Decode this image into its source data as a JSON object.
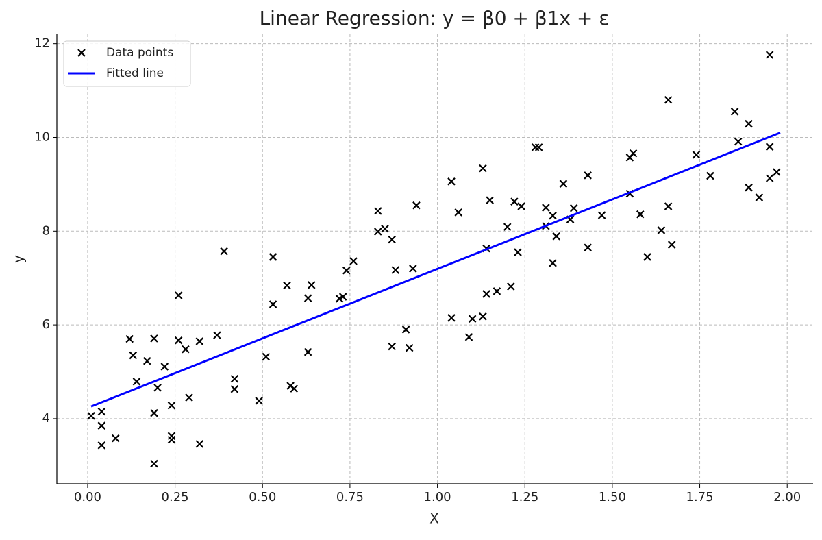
{
  "chart_data": {
    "type": "scatter",
    "title": "Linear Regression: y = β0 + β1x + ε",
    "x_label": "X",
    "y_label": "y",
    "xlim": [
      -0.088,
      2.074
    ],
    "ylim": [
      2.61,
      12.2
    ],
    "xticks": [
      {
        "value": 0,
        "label": "0.00"
      },
      {
        "value": 0.25,
        "label": "0.25"
      },
      {
        "value": 0.5,
        "label": "0.50"
      },
      {
        "value": 0.75,
        "label": "0.75"
      },
      {
        "value": 1,
        "label": "1.00"
      },
      {
        "value": 1.25,
        "label": "1.25"
      },
      {
        "value": 1.5,
        "label": "1.50"
      },
      {
        "value": 1.75,
        "label": "1.75"
      },
      {
        "value": 2,
        "label": "2.00"
      }
    ],
    "yticks": [
      4,
      6,
      8,
      10,
      12
    ],
    "grid": true,
    "legend": "upper left",
    "series": [
      {
        "name": "Data points",
        "type": "scatter",
        "marker": "x",
        "color": "#000000",
        "x": [
          0.01,
          0.04,
          0.04,
          0.04,
          0.08,
          0.12,
          0.13,
          0.14,
          0.17,
          0.19,
          0.19,
          0.19,
          0.2,
          0.22,
          0.24,
          0.24,
          0.24,
          0.26,
          0.26,
          0.28,
          0.29,
          0.32,
          0.32,
          0.37,
          0.39,
          0.42,
          0.42,
          0.49,
          0.51,
          0.53,
          0.53,
          0.57,
          0.58,
          0.59,
          0.63,
          0.64,
          0.63,
          0.72,
          0.73,
          0.74,
          0.76,
          0.83,
          0.83,
          0.85,
          0.87,
          0.88,
          0.87,
          0.91,
          0.92,
          0.93,
          0.94,
          1.04,
          1.06,
          1.04,
          1.09,
          1.1,
          1.13,
          1.14,
          1.14,
          1.13,
          1.15,
          1.17,
          1.2,
          1.21,
          1.22,
          1.24,
          1.23,
          1.28,
          1.29,
          1.31,
          1.31,
          1.33,
          1.34,
          1.33,
          1.36,
          1.38,
          1.39,
          1.43,
          1.43,
          1.47,
          1.55,
          1.56,
          1.55,
          1.58,
          1.6,
          1.64,
          1.66,
          1.66,
          1.67,
          1.74,
          1.78,
          1.85,
          1.86,
          1.89,
          1.89,
          1.92,
          1.95,
          1.95,
          1.95,
          1.97
        ],
        "values": [
          4.06,
          4.15,
          3.85,
          3.43,
          3.58,
          5.7,
          5.35,
          4.79,
          5.23,
          5.71,
          4.12,
          3.04,
          4.66,
          5.11,
          4.28,
          3.63,
          3.55,
          6.63,
          5.67,
          5.48,
          4.45,
          3.46,
          5.65,
          5.78,
          7.57,
          4.85,
          4.63,
          4.38,
          5.32,
          6.44,
          7.45,
          6.84,
          4.7,
          4.64,
          6.57,
          6.85,
          5.42,
          6.56,
          6.6,
          7.16,
          7.36,
          8.43,
          7.99,
          8.05,
          7.82,
          7.17,
          5.54,
          5.9,
          5.51,
          7.2,
          8.55,
          9.06,
          8.4,
          6.15,
          5.74,
          6.13,
          9.34,
          7.63,
          6.66,
          6.18,
          8.66,
          6.72,
          8.09,
          6.82,
          8.63,
          8.53,
          7.55,
          9.79,
          9.79,
          8.5,
          8.11,
          8.33,
          7.89,
          7.32,
          9.01,
          8.25,
          8.49,
          9.19,
          7.65,
          8.34,
          9.57,
          9.66,
          8.8,
          8.36,
          7.45,
          8.02,
          8.53,
          10.8,
          7.71,
          9.63,
          9.18,
          10.55,
          9.91,
          10.29,
          8.93,
          8.72,
          9.8,
          9.13,
          11.76,
          9.26
        ]
      },
      {
        "name": "Fitted line",
        "type": "line",
        "color": "#0000ff",
        "x": [
          0.01,
          1.98
        ],
        "values": [
          4.26,
          10.1
        ]
      }
    ]
  }
}
